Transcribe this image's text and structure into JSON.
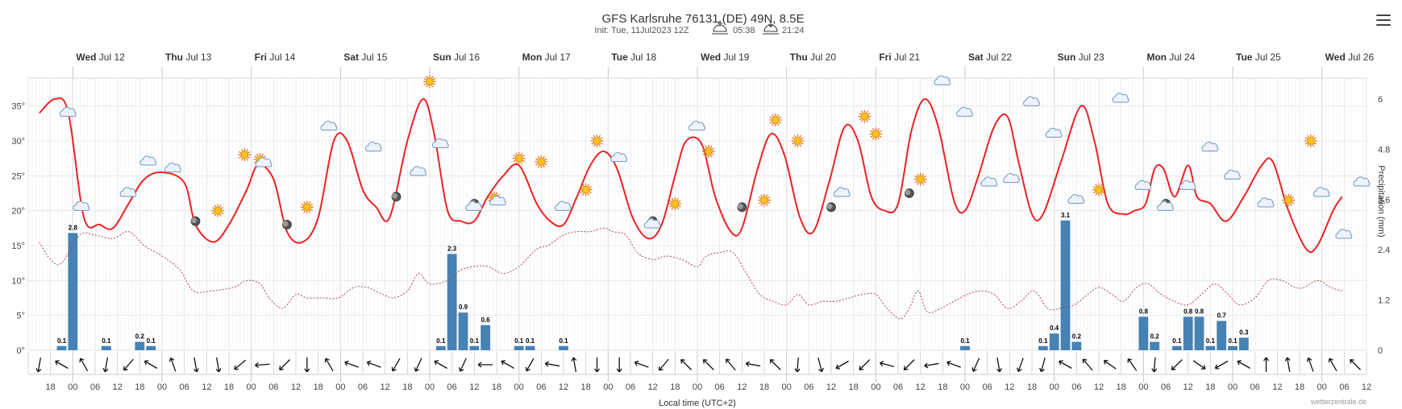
{
  "chart_data": {
    "type": "combo",
    "title": "GFS Karlsruhe 76131 (DE) 49N, 8.5E",
    "subtitle": {
      "init": "Init: Tue, 11Jul2023 12Z",
      "sunrise": "05:38",
      "sunset": "21:24"
    },
    "days": [
      {
        "dow": "Wed",
        "date": "Jul 12"
      },
      {
        "dow": "Thu",
        "date": "Jul 13"
      },
      {
        "dow": "Fri",
        "date": "Jul 14"
      },
      {
        "dow": "Sat",
        "date": "Jul 15"
      },
      {
        "dow": "Sun",
        "date": "Jul 16"
      },
      {
        "dow": "Mon",
        "date": "Jul 17"
      },
      {
        "dow": "Tue",
        "date": "Jul 18"
      },
      {
        "dow": "Wed",
        "date": "Jul 19"
      },
      {
        "dow": "Thu",
        "date": "Jul 20"
      },
      {
        "dow": "Fri",
        "date": "Jul 21"
      },
      {
        "dow": "Sat",
        "date": "Jul 22"
      },
      {
        "dow": "Sun",
        "date": "Jul 23"
      },
      {
        "dow": "Mon",
        "date": "Jul 24"
      },
      {
        "dow": "Tue",
        "date": "Jul 25"
      },
      {
        "dow": "Wed",
        "date": "Jul 26"
      }
    ],
    "x_unit": "hours since Tue Jul 11 18:00 local",
    "x_range": [
      -1,
      59
    ],
    "hour_labels": [
      "18",
      "00",
      "06",
      "12",
      "18",
      "00",
      "06",
      "12",
      "18",
      "00",
      "06",
      "12",
      "18",
      "00",
      "06",
      "12",
      "18",
      "00",
      "06",
      "12",
      "18",
      "00",
      "06",
      "12",
      "18",
      "00",
      "06",
      "12",
      "18",
      "00",
      "06",
      "12",
      "18",
      "00",
      "06",
      "12",
      "18",
      "00",
      "06",
      "12",
      "18",
      "00",
      "06",
      "12",
      "18",
      "00",
      "06",
      "12",
      "18",
      "00",
      "06",
      "12",
      "18",
      "00",
      "06",
      "12",
      "18",
      "00",
      "06",
      "12"
    ],
    "xlabel": "Local time (UTC+2)",
    "y_left": {
      "ticks": [
        "0°",
        "5°",
        "10°",
        "15°",
        "20°",
        "25°",
        "30°",
        "35°"
      ],
      "range": [
        0,
        39
      ]
    },
    "y_right": {
      "label": "Precipitation (mm)",
      "ticks": [
        "0",
        "1.2",
        "2.4",
        "3.6",
        "4.8",
        "6"
      ],
      "range": [
        0,
        6.5
      ]
    },
    "temperature": {
      "name": "Temperature",
      "color": "#ee2222",
      "points": [
        [
          -0.5,
          34
        ],
        [
          0.2,
          36
        ],
        [
          0.8,
          34
        ],
        [
          1.5,
          19
        ],
        [
          2.2,
          18
        ],
        [
          2.8,
          17.5
        ],
        [
          3.5,
          21
        ],
        [
          4.2,
          24.5
        ],
        [
          5,
          25.5
        ],
        [
          6,
          24
        ],
        [
          6.5,
          18
        ],
        [
          7.3,
          15.5
        ],
        [
          8,
          18
        ],
        [
          8.8,
          23
        ],
        [
          9.3,
          26.5
        ],
        [
          10,
          24.5
        ],
        [
          10.6,
          17
        ],
        [
          11.3,
          15.5
        ],
        [
          12,
          19
        ],
        [
          12.7,
          30
        ],
        [
          13.3,
          30
        ],
        [
          14,
          23
        ],
        [
          14.6,
          20.5
        ],
        [
          15.2,
          19
        ],
        [
          16,
          30
        ],
        [
          16.7,
          36
        ],
        [
          17.2,
          31
        ],
        [
          17.8,
          20
        ],
        [
          18.4,
          18.5
        ],
        [
          19,
          18.5
        ],
        [
          19.6,
          22
        ],
        [
          20.3,
          25
        ],
        [
          21,
          26.5
        ],
        [
          21.8,
          21
        ],
        [
          22.4,
          18.5
        ],
        [
          23,
          18
        ],
        [
          23.6,
          22
        ],
        [
          24.2,
          26.5
        ],
        [
          24.8,
          28.5
        ],
        [
          25.4,
          26
        ],
        [
          26.1,
          19
        ],
        [
          26.8,
          16
        ],
        [
          27.4,
          18
        ],
        [
          28,
          25
        ],
        [
          28.5,
          30
        ],
        [
          29.2,
          29.5
        ],
        [
          29.8,
          22
        ],
        [
          30.5,
          17
        ],
        [
          31,
          17.5
        ],
        [
          31.7,
          26
        ],
        [
          32.3,
          31
        ],
        [
          32.9,
          28
        ],
        [
          33.6,
          19
        ],
        [
          34.2,
          17
        ],
        [
          34.9,
          24
        ],
        [
          35.6,
          32
        ],
        [
          36.2,
          30
        ],
        [
          36.8,
          22
        ],
        [
          37.4,
          20
        ],
        [
          38,
          21
        ],
        [
          38.6,
          31.5
        ],
        [
          39.2,
          36
        ],
        [
          39.8,
          32
        ],
        [
          40.5,
          21.5
        ],
        [
          41,
          20
        ],
        [
          41.6,
          25
        ],
        [
          42.3,
          32
        ],
        [
          42.9,
          33.5
        ],
        [
          43.4,
          27
        ],
        [
          44,
          19.5
        ],
        [
          44.5,
          19.5
        ],
        [
          45.3,
          27
        ],
        [
          46.2,
          35
        ],
        [
          46.8,
          30
        ],
        [
          47.4,
          21
        ],
        [
          48.1,
          19.5
        ],
        [
          48.6,
          20
        ],
        [
          49.1,
          21
        ],
        [
          49.5,
          26
        ],
        [
          49.9,
          26
        ],
        [
          50.4,
          22
        ],
        [
          51,
          26.5
        ],
        [
          51.4,
          22
        ],
        [
          52,
          21
        ],
        [
          52.7,
          18.5
        ],
        [
          53.5,
          22
        ],
        [
          54.3,
          26.5
        ],
        [
          54.8,
          27
        ],
        [
          55.5,
          20
        ],
        [
          56.3,
          14.5
        ],
        [
          56.8,
          15
        ],
        [
          57.5,
          20
        ],
        [
          57.9,
          22
        ]
      ]
    },
    "dewpoint": {
      "name": "Dew point",
      "color": "#a84848",
      "points": [
        [
          -0.5,
          15.5
        ],
        [
          0,
          13
        ],
        [
          0.5,
          12.5
        ],
        [
          1.3,
          16.5
        ],
        [
          2,
          16.5
        ],
        [
          2.8,
          16
        ],
        [
          3.5,
          17
        ],
        [
          4.2,
          15
        ],
        [
          5,
          13.5
        ],
        [
          5.8,
          11.5
        ],
        [
          6.4,
          8.5
        ],
        [
          7.2,
          8.5
        ],
        [
          8.2,
          9
        ],
        [
          8.8,
          10
        ],
        [
          9.4,
          9.5
        ],
        [
          9.8,
          7.5
        ],
        [
          10.4,
          6
        ],
        [
          11,
          8
        ],
        [
          11.5,
          7.5
        ],
        [
          12.2,
          7.5
        ],
        [
          12.9,
          7.5
        ],
        [
          13.6,
          9
        ],
        [
          14.2,
          9
        ],
        [
          14.9,
          8
        ],
        [
          15.4,
          7.5
        ],
        [
          16,
          8.5
        ],
        [
          16.5,
          11
        ],
        [
          17,
          9.5
        ],
        [
          17.8,
          10
        ],
        [
          18.4,
          11.5
        ],
        [
          19,
          12
        ],
        [
          19.6,
          12
        ],
        [
          20.3,
          11
        ],
        [
          21,
          12
        ],
        [
          21.8,
          14.5
        ],
        [
          22.3,
          15
        ],
        [
          23,
          16.5
        ],
        [
          23.6,
          17
        ],
        [
          24.2,
          17
        ],
        [
          24.8,
          17.5
        ],
        [
          25.2,
          17
        ],
        [
          25.8,
          16.5
        ],
        [
          26.3,
          14
        ],
        [
          27,
          13
        ],
        [
          27.6,
          13.5
        ],
        [
          28.3,
          13
        ],
        [
          29,
          12
        ],
        [
          29.4,
          13.5
        ],
        [
          30,
          14
        ],
        [
          30.6,
          14
        ],
        [
          31.2,
          11
        ],
        [
          31.8,
          8
        ],
        [
          32.4,
          7
        ],
        [
          33,
          6.5
        ],
        [
          33.5,
          8
        ],
        [
          34,
          6.5
        ],
        [
          34.6,
          7
        ],
        [
          35.2,
          7
        ],
        [
          35.8,
          7.5
        ],
        [
          36.4,
          8
        ],
        [
          37,
          8
        ],
        [
          37.5,
          6
        ],
        [
          38.1,
          4.5
        ],
        [
          38.5,
          6
        ],
        [
          38.9,
          8.5
        ],
        [
          39.3,
          5.5
        ],
        [
          39.9,
          6
        ],
        [
          40.5,
          7
        ],
        [
          41.1,
          8
        ],
        [
          41.7,
          8.5
        ],
        [
          42.3,
          8
        ],
        [
          42.9,
          6
        ],
        [
          43.5,
          7
        ],
        [
          44.1,
          8.5
        ],
        [
          44.7,
          6
        ],
        [
          45.3,
          6
        ],
        [
          45.9,
          6.5
        ],
        [
          46.5,
          8
        ],
        [
          47,
          9
        ],
        [
          47.6,
          8
        ],
        [
          48.1,
          7
        ],
        [
          48.7,
          9
        ],
        [
          49.2,
          9.5
        ],
        [
          49.8,
          8
        ],
        [
          50.4,
          7
        ],
        [
          51,
          6.5
        ],
        [
          51.6,
          8
        ],
        [
          52.2,
          9.5
        ],
        [
          52.8,
          8
        ],
        [
          53.3,
          6.5
        ],
        [
          54,
          7.5
        ],
        [
          54.6,
          10
        ],
        [
          55.2,
          10
        ],
        [
          55.8,
          9
        ],
        [
          56.2,
          9
        ],
        [
          56.8,
          10
        ],
        [
          57.4,
          9
        ],
        [
          57.9,
          8.5
        ]
      ]
    },
    "precipitation": {
      "name": "Precipitation",
      "color": "#4682b4",
      "bars": [
        {
          "x": 0.5,
          "v": 0.1,
          "label": "0.1"
        },
        {
          "x": 1,
          "v": 2.8,
          "label": "2.8"
        },
        {
          "x": 2.5,
          "v": 0.1,
          "label": "0.1"
        },
        {
          "x": 4,
          "v": 0.2,
          "label": "0.2"
        },
        {
          "x": 4.5,
          "v": 0.1,
          "label": "0.1"
        },
        {
          "x": 17.5,
          "v": 0.1,
          "label": "0.1"
        },
        {
          "x": 18,
          "v": 2.3,
          "label": "2.3"
        },
        {
          "x": 18.5,
          "v": 0.9,
          "label": "0.9"
        },
        {
          "x": 19,
          "v": 0.1,
          "label": "0.1"
        },
        {
          "x": 19.5,
          "v": 0.6,
          "label": "0.6"
        },
        {
          "x": 21,
          "v": 0.1,
          "label": "0.1"
        },
        {
          "x": 21.5,
          "v": 0.1,
          "label": "0.1"
        },
        {
          "x": 23,
          "v": 0.1,
          "label": "0.1"
        },
        {
          "x": 41,
          "v": 0.1,
          "label": "0.1"
        },
        {
          "x": 44.5,
          "v": 0.1,
          "label": "0.1"
        },
        {
          "x": 45,
          "v": 0.4,
          "label": "0.4"
        },
        {
          "x": 45.5,
          "v": 3.1,
          "label": "3.1"
        },
        {
          "x": 46,
          "v": 0.2,
          "label": "0.2"
        },
        {
          "x": 49,
          "v": 0.8,
          "label": "0.8"
        },
        {
          "x": 49.5,
          "v": 0.2,
          "label": "0.2"
        },
        {
          "x": 50.5,
          "v": 0.1,
          "label": "0.1"
        },
        {
          "x": 51,
          "v": 0.8,
          "label": "0.8"
        },
        {
          "x": 51.5,
          "v": 0.8,
          "label": "0.8"
        },
        {
          "x": 52,
          "v": 0.1,
          "label": "0.1"
        },
        {
          "x": 52.5,
          "v": 0.7,
          "label": "0.7"
        },
        {
          "x": 53,
          "v": 0.1,
          "label": "0.1"
        },
        {
          "x": 53.5,
          "v": 0.3,
          "label": "0.3"
        }
      ]
    },
    "weather_icons": [
      [
        0.8,
        34,
        "cloud"
      ],
      [
        1.4,
        20.5,
        "cloud"
      ],
      [
        3.5,
        22.5,
        "cloud"
      ],
      [
        4.4,
        27,
        "cloud"
      ],
      [
        5.5,
        26,
        "cloud"
      ],
      [
        6.5,
        18.5,
        "moon"
      ],
      [
        7.5,
        20,
        "sun"
      ],
      [
        8.7,
        28,
        "sun"
      ],
      [
        9.5,
        27,
        "sun-cloud"
      ],
      [
        10.6,
        18,
        "moon"
      ],
      [
        11.5,
        20.5,
        "sun"
      ],
      [
        12.5,
        32,
        "cloud"
      ],
      [
        14.5,
        29,
        "cloud"
      ],
      [
        15.5,
        22,
        "moon"
      ],
      [
        16.5,
        25.5,
        "cloud"
      ],
      [
        17,
        38.5,
        "sun"
      ],
      [
        17.5,
        29.5,
        "cloud"
      ],
      [
        19,
        21,
        "moon"
      ],
      [
        19,
        20.5,
        "cloud"
      ],
      [
        20,
        21.5,
        "sun-cloud"
      ],
      [
        21,
        27.5,
        "sun"
      ],
      [
        22,
        27,
        "sun"
      ],
      [
        23,
        20.5,
        "cloud"
      ],
      [
        24,
        23,
        "sun"
      ],
      [
        24.5,
        30,
        "sun"
      ],
      [
        25.5,
        27.5,
        "cloud"
      ],
      [
        27,
        18.5,
        "moon"
      ],
      [
        27,
        18,
        "cloud"
      ],
      [
        28,
        21,
        "sun"
      ],
      [
        29,
        32,
        "cloud"
      ],
      [
        29.5,
        28.5,
        "sun"
      ],
      [
        31,
        20.5,
        "moon"
      ],
      [
        32,
        21.5,
        "sun"
      ],
      [
        32.5,
        33,
        "sun"
      ],
      [
        33.5,
        30,
        "sun"
      ],
      [
        35,
        20.5,
        "moon"
      ],
      [
        35.5,
        22.5,
        "cloud"
      ],
      [
        36.5,
        33.5,
        "sun"
      ],
      [
        37,
        31,
        "sun"
      ],
      [
        38.5,
        22.5,
        "moon"
      ],
      [
        39,
        24.5,
        "sun"
      ],
      [
        40,
        38.5,
        "cloud"
      ],
      [
        41,
        34,
        "cloud"
      ],
      [
        42.1,
        24,
        "cloud"
      ],
      [
        43.1,
        24.5,
        "cloud"
      ],
      [
        44,
        35.5,
        "cloud"
      ],
      [
        45,
        31,
        "cloud"
      ],
      [
        46,
        21.5,
        "cloud"
      ],
      [
        47,
        23,
        "sun"
      ],
      [
        48,
        36,
        "cloud"
      ],
      [
        49,
        23.5,
        "cloud"
      ],
      [
        50,
        21,
        "moon"
      ],
      [
        50,
        20.5,
        "cloud"
      ],
      [
        51,
        23.5,
        "cloud"
      ],
      [
        52,
        29,
        "cloud"
      ],
      [
        53,
        25,
        "cloud"
      ],
      [
        54.5,
        21,
        "cloud"
      ],
      [
        55.5,
        21.5,
        "sun"
      ],
      [
        56.5,
        30,
        "sun"
      ],
      [
        57,
        22.5,
        "cloud"
      ],
      [
        58,
        16.5,
        "cloud"
      ],
      [
        58.8,
        24,
        "cloud"
      ]
    ],
    "wind_directions_deg": [
      100,
      210,
      240,
      100,
      130,
      210,
      250,
      80,
      80,
      140,
      175,
      135,
      90,
      240,
      200,
      200,
      120,
      115,
      210,
      115,
      180,
      210,
      120,
      190,
      260,
      90,
      90,
      200,
      130,
      225,
      225,
      230,
      190,
      225,
      95,
      75,
      150,
      135,
      195,
      135,
      170,
      200,
      115,
      80,
      110,
      105,
      210,
      230,
      215,
      235,
      95,
      135,
      35,
      150,
      210,
      270,
      260,
      250,
      240,
      225
    ]
  },
  "credit": "wetterzentrale.de",
  "menu_icon": "hamburger-menu-icon"
}
